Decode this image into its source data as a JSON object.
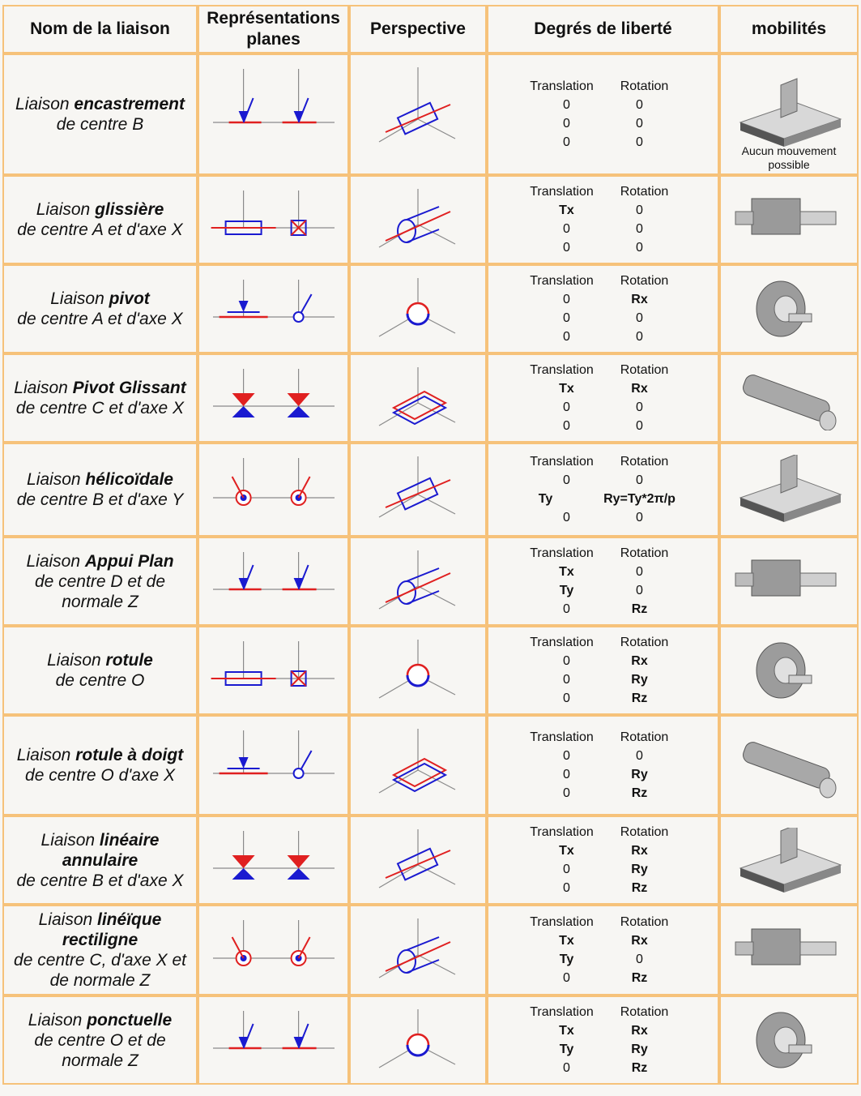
{
  "headers": {
    "name": "Nom de la liaison",
    "planes_line1": "Représentations",
    "planes_line2": "planes",
    "perspective": "Perspective",
    "dof": "Degrés de liberté",
    "mobility": "mobilités"
  },
  "dof_labels": {
    "translation": "Translation",
    "rotation": "Rotation"
  },
  "rows": [
    {
      "pre": "Liaison ",
      "bold": "encastrement",
      "rest": "de centre B",
      "t": [
        "0",
        "0",
        "0"
      ],
      "r": [
        "0",
        "0",
        "0"
      ],
      "mob_caption": "Aucun mouvement possible"
    },
    {
      "pre": "Liaison ",
      "bold": "glissière",
      "rest": "de centre A et d'axe X",
      "t": [
        "Tx",
        "0",
        "0"
      ],
      "r": [
        "0",
        "0",
        "0"
      ]
    },
    {
      "pre": "Liaison ",
      "bold": "pivot",
      "rest": "de centre A et d'axe X",
      "t": [
        "0",
        "0",
        "0"
      ],
      "r": [
        "Rx",
        "0",
        "0"
      ]
    },
    {
      "pre": "Liaison ",
      "bold": "Pivot Glissant",
      "rest": "de centre C et d'axe X",
      "t": [
        "Tx",
        "0",
        "0"
      ],
      "r": [
        "Rx",
        "0",
        "0"
      ]
    },
    {
      "pre": "Liaison ",
      "bold": "hélicoïdale",
      "rest": "de centre B et d'axe Y",
      "t": [
        "0",
        "Ty",
        "0"
      ],
      "r": [
        "0",
        "Ry=Ty*2π/p",
        "0"
      ]
    },
    {
      "pre": "Liaison ",
      "bold": "Appui Plan",
      "rest": "de centre D et de normale Z",
      "t": [
        "Tx",
        "Ty",
        "0"
      ],
      "r": [
        "0",
        "0",
        "Rz"
      ]
    },
    {
      "pre": "Liaison ",
      "bold": "rotule",
      "rest": "de centre O",
      "t": [
        "0",
        "0",
        "0"
      ],
      "r": [
        "Rx",
        "Ry",
        "Rz"
      ]
    },
    {
      "pre": "Liaison ",
      "bold": "rotule à doigt",
      "rest": "de centre O d'axe X",
      "t": [
        "0",
        "0",
        "0"
      ],
      "r": [
        "0",
        "Ry",
        "Rz"
      ]
    },
    {
      "pre": "Liaison ",
      "bold": "linéaire annulaire",
      "rest": "de centre B et d'axe X",
      "t": [
        "Tx",
        "0",
        "0"
      ],
      "r": [
        "Rx",
        "Ry",
        "Rz"
      ]
    },
    {
      "pre": "Liaison ",
      "bold": "linéïque rectiligne",
      "rest": "de centre C, d'axe X et de normale Z",
      "t": [
        "Tx",
        "Ty",
        "0"
      ],
      "r": [
        "Rx",
        "0",
        "Rz"
      ]
    },
    {
      "pre": "Liaison ",
      "bold": "ponctuelle",
      "rest": "de centre O et de normale Z",
      "t": [
        "Tx",
        "Ty",
        "0"
      ],
      "r": [
        "Rx",
        "Ry",
        "Rz"
      ]
    }
  ],
  "axis_letters": {
    "x": "x",
    "y": "y",
    "z": "z"
  },
  "points": {
    "B": "B",
    "A": "A",
    "C": "C",
    "D": "D",
    "O": "O"
  }
}
